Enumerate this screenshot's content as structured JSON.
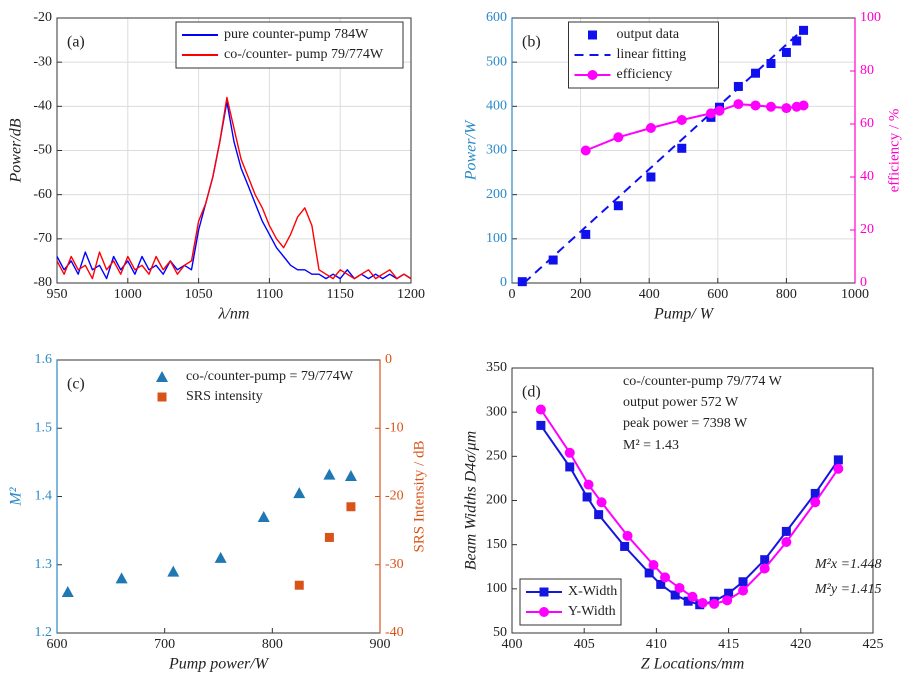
{
  "chart_data": [
    {
      "type": "line",
      "label": "(a)",
      "xlabel": "λ/nm",
      "ylabel": "Power/dB",
      "xlim": [
        950,
        1200
      ],
      "xticks": [
        950,
        1000,
        1050,
        1100,
        1150,
        1200
      ],
      "ylim": [
        -80,
        -20
      ],
      "yticks": [
        -80,
        -70,
        -60,
        -50,
        -40,
        -30,
        -20
      ],
      "grid": true,
      "legend": "upper right",
      "legend_frame": true,
      "series": [
        {
          "name": "pure counter-pump 784W",
          "color": "#0000ff",
          "marker": "none",
          "linestyle": "solid",
          "x": [
            950,
            955,
            960,
            965,
            970,
            975,
            980,
            985,
            990,
            995,
            1000,
            1005,
            1010,
            1015,
            1020,
            1025,
            1030,
            1035,
            1040,
            1045,
            1050,
            1055,
            1060,
            1065,
            1070,
            1075,
            1080,
            1085,
            1090,
            1095,
            1100,
            1105,
            1110,
            1115,
            1120,
            1125,
            1130,
            1135,
            1140,
            1145,
            1150,
            1155,
            1160,
            1165,
            1170,
            1175,
            1180,
            1185,
            1190,
            1195,
            1200
          ],
          "values": [
            -74,
            -77,
            -75,
            -78,
            -73,
            -77,
            -76,
            -79,
            -74,
            -77,
            -75,
            -78,
            -74,
            -77,
            -76,
            -78,
            -75,
            -77,
            -76,
            -77,
            -68,
            -62,
            -56,
            -48,
            -39,
            -48,
            -54,
            -58,
            -62,
            -66,
            -69,
            -72,
            -74,
            -76,
            -77,
            -77,
            -78,
            -78,
            -79,
            -78,
            -79,
            -77,
            -79,
            -78,
            -79,
            -78,
            -79,
            -78,
            -79,
            -78,
            -79
          ]
        },
        {
          "name": "co-/counter- pump 79/774W",
          "color": "#ff0000",
          "marker": "none",
          "linestyle": "solid",
          "x": [
            950,
            955,
            960,
            965,
            970,
            975,
            980,
            985,
            990,
            995,
            1000,
            1005,
            1010,
            1015,
            1020,
            1025,
            1030,
            1035,
            1040,
            1045,
            1050,
            1055,
            1060,
            1065,
            1070,
            1075,
            1080,
            1085,
            1090,
            1095,
            1100,
            1105,
            1110,
            1115,
            1120,
            1125,
            1130,
            1135,
            1140,
            1145,
            1150,
            1155,
            1160,
            1165,
            1170,
            1175,
            1180,
            1185,
            1190,
            1195,
            1200
          ],
          "values": [
            -75,
            -78,
            -74,
            -77,
            -76,
            -79,
            -73,
            -77,
            -75,
            -78,
            -74,
            -77,
            -76,
            -78,
            -74,
            -77,
            -75,
            -78,
            -76,
            -75,
            -66,
            -62,
            -56,
            -48,
            -38,
            -45,
            -52,
            -56,
            -60,
            -63,
            -67,
            -70,
            -72,
            -69,
            -65,
            -63,
            -67,
            -77,
            -78,
            -79,
            -77,
            -78,
            -79,
            -78,
            -77,
            -79,
            -78,
            -77,
            -79,
            -78,
            -79
          ]
        }
      ]
    },
    {
      "type": "line",
      "label": "(b)",
      "xlabel": "Pump/ W",
      "ylabel": "Power/W",
      "y2label": "efficiency / %",
      "y_color": "#2a8ac8",
      "y2_color": "#ff00cc",
      "xlim": [
        0,
        1000
      ],
      "xticks": [
        0,
        200,
        400,
        600,
        800,
        1000
      ],
      "ylim": [
        0,
        600
      ],
      "yticks": [
        0,
        100,
        200,
        300,
        400,
        500,
        600
      ],
      "y2lim": [
        0,
        100
      ],
      "y2ticks": [
        0,
        20,
        40,
        60,
        80,
        100
      ],
      "grid": true,
      "legend": "upper center",
      "legend_frame": true,
      "series": [
        {
          "name": "output data",
          "color": "#1010ee",
          "marker": "square",
          "linestyle": "none",
          "x": [
            30,
            120,
            215,
            310,
            405,
            495,
            580,
            605,
            660,
            710,
            755,
            800,
            830,
            850
          ],
          "values": [
            3,
            52,
            110,
            175,
            240,
            305,
            375,
            398,
            445,
            475,
            497,
            522,
            548,
            572
          ]
        },
        {
          "name": "linear fitting",
          "color": "#1010ee",
          "marker": "none",
          "linestyle": "dashed",
          "x": [
            35,
            850
          ],
          "values": [
            0,
            575
          ]
        },
        {
          "name": "efficiency",
          "color": "#ff00ff",
          "marker": "circle",
          "linestyle": "solid",
          "axis": "y2",
          "x": [
            215,
            310,
            405,
            495,
            580,
            605,
            660,
            710,
            755,
            800,
            830,
            850
          ],
          "values": [
            50,
            55,
            58.5,
            61.5,
            64,
            65,
            67.5,
            67,
            66.5,
            66,
            66.5,
            67
          ]
        }
      ]
    },
    {
      "type": "scatter",
      "label": "(c)",
      "xlabel": "Pump power/W",
      "ylabel": "M²",
      "y2label": "SRS Intensity / dB",
      "y_color": "#2a8ac8",
      "y2_color": "#d95319",
      "xlim": [
        600,
        900
      ],
      "xticks": [
        600,
        700,
        800,
        900
      ],
      "ylim": [
        1.2,
        1.6
      ],
      "yticks": [
        1.2,
        1.3,
        1.4,
        1.5,
        1.6
      ],
      "y2lim": [
        -40,
        0
      ],
      "y2ticks": [
        -40,
        -30,
        -20,
        -10,
        0
      ],
      "grid": false,
      "legend": "upper right",
      "legend_frame": false,
      "series": [
        {
          "name": "co-/counter-pump = 79/774W",
          "color": "#1f77b4",
          "marker": "triangle",
          "linestyle": "none",
          "x": [
            610,
            660,
            708,
            752,
            792,
            825,
            853,
            873
          ],
          "values": [
            1.26,
            1.28,
            1.29,
            1.31,
            1.37,
            1.405,
            1.432,
            1.43
          ]
        },
        {
          "name": "SRS intensity",
          "color": "#d95319",
          "marker": "square",
          "linestyle": "none",
          "axis": "y2",
          "x": [
            825,
            853,
            873
          ],
          "values": [
            -33,
            -26,
            -21.5
          ]
        }
      ]
    },
    {
      "type": "line",
      "label": "(d)",
      "xlabel": "Z Locations/mm",
      "ylabel": "Beam Widths D4σ/μm",
      "xlim": [
        400,
        425
      ],
      "xticks": [
        400,
        405,
        410,
        415,
        420,
        425
      ],
      "ylim": [
        50,
        350
      ],
      "yticks": [
        50,
        100,
        150,
        200,
        250,
        300,
        350
      ],
      "grid": false,
      "legend": "lower left",
      "legend_frame": true,
      "annotations": [
        "co-/counter-pump 79/774 W",
        "output power 572 W",
        "peak power = 7398 W",
        "M² = 1.43",
        "M²x =1.448",
        "M²y =1.415"
      ],
      "series": [
        {
          "name": "X-Width",
          "color": "#1515e0",
          "marker": "square",
          "linestyle": "solid",
          "x": [
            402,
            404,
            405.2,
            406,
            407.8,
            409.5,
            410.3,
            411.3,
            412.2,
            413,
            414,
            415,
            416,
            417.5,
            419,
            421,
            422.6
          ],
          "values": [
            285,
            238,
            204,
            184,
            148,
            118,
            105,
            93,
            86,
            82,
            86,
            95,
            108,
            133,
            165,
            208,
            246
          ]
        },
        {
          "name": "Y-Width",
          "color": "#ff00ff",
          "marker": "circle",
          "linestyle": "solid",
          "x": [
            402,
            404,
            405.3,
            406.2,
            408,
            409.8,
            410.6,
            411.6,
            412.5,
            413.2,
            414,
            414.9,
            416,
            417.5,
            419,
            421,
            422.6
          ],
          "values": [
            303,
            254,
            218,
            198,
            160,
            127,
            113,
            101,
            91,
            84,
            83,
            87,
            98,
            123,
            153,
            198,
            236
          ]
        }
      ]
    }
  ]
}
